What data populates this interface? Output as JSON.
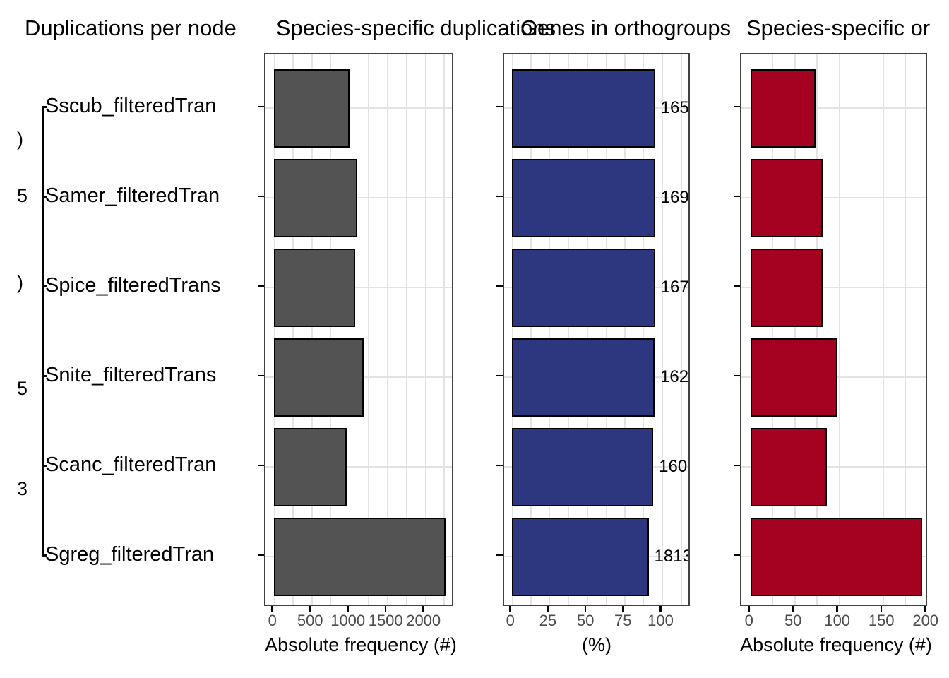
{
  "figure_type": "faceted horizontal bar charts with species tree",
  "colors": {
    "gray_bars": "#535353",
    "blue_bars": "#2D3780",
    "red_bars": "#A40220",
    "bar_outline": "#000000",
    "panel_border": "#404040",
    "gridline": "#e3e3e3",
    "tick_text": "#4d4d4d"
  },
  "chart_data": [
    {
      "type": "tree",
      "title": "Duplications per node",
      "tip_labels": [
        "Sscub_filteredTran",
        "Samer_filteredTran",
        "Spice_filteredTrans",
        "Snite_filteredTrans",
        "Scanc_filteredTran",
        "Sgreg_filteredTran"
      ],
      "node_labels_visible": [
        ")",
        "5",
        ")",
        "5",
        "3"
      ],
      "note": "tip labels and internal node labels are clipped at panel edges"
    },
    {
      "type": "bar",
      "orientation": "horizontal",
      "title": "Species-specific duplications",
      "categories": [
        "Sscub_filteredTran",
        "Samer_filteredTran",
        "Spice_filteredTrans",
        "Snite_filteredTrans",
        "Scanc_filteredTran",
        "Sgreg_filteredTran"
      ],
      "values": [
        1000,
        1110,
        1080,
        1190,
        965,
        2270
      ],
      "xlabel": "Absolute frequency (#)",
      "xticks": [
        0,
        500,
        1000,
        1500,
        2000
      ],
      "xtick_labels": [
        "0",
        "500",
        "1000",
        "1500",
        "2000"
      ],
      "xlim": [
        0,
        2400
      ],
      "grid_step": 250,
      "bar_color": "#535353",
      "legend": "none"
    },
    {
      "type": "bar",
      "orientation": "horizontal",
      "title": "Genes in orthogroups",
      "categories": [
        "Sscub_filteredTran",
        "Samer_filteredTran",
        "Spice_filteredTrans",
        "Snite_filteredTrans",
        "Scanc_filteredTran",
        "Sgreg_filteredTran"
      ],
      "values": [
        95.4,
        95.4,
        95.4,
        95.1,
        94.2,
        91.1
      ],
      "bar_labels_visible": [
        "165",
        "169",
        "167",
        "162",
        "160",
        "1813"
      ],
      "xlabel": "(%)",
      "xticks": [
        0,
        25,
        50,
        75,
        100
      ],
      "xtick_labels": [
        "0",
        "25",
        "50",
        "75",
        "100"
      ],
      "xlim": [
        0,
        120
      ],
      "grid_step": 12.5,
      "bar_color": "#2D3780",
      "legend": "none"
    },
    {
      "type": "bar",
      "orientation": "horizontal",
      "title": "Species-specific or",
      "categories": [
        "Sscub_filteredTran",
        "Samer_filteredTran",
        "Spice_filteredTrans",
        "Snite_filteredTrans",
        "Scanc_filteredTran",
        "Sgreg_filteredTran"
      ],
      "values": [
        74,
        82,
        82,
        99,
        87,
        195
      ],
      "xlabel": "Absolute frequency (#)",
      "xticks": [
        0,
        50,
        100,
        150,
        200
      ],
      "xtick_labels": [
        "0",
        "50",
        "100",
        "150",
        "200"
      ],
      "xlim": [
        0,
        202
      ],
      "grid_step": 25,
      "bar_color": "#A40220",
      "legend": "none"
    }
  ]
}
